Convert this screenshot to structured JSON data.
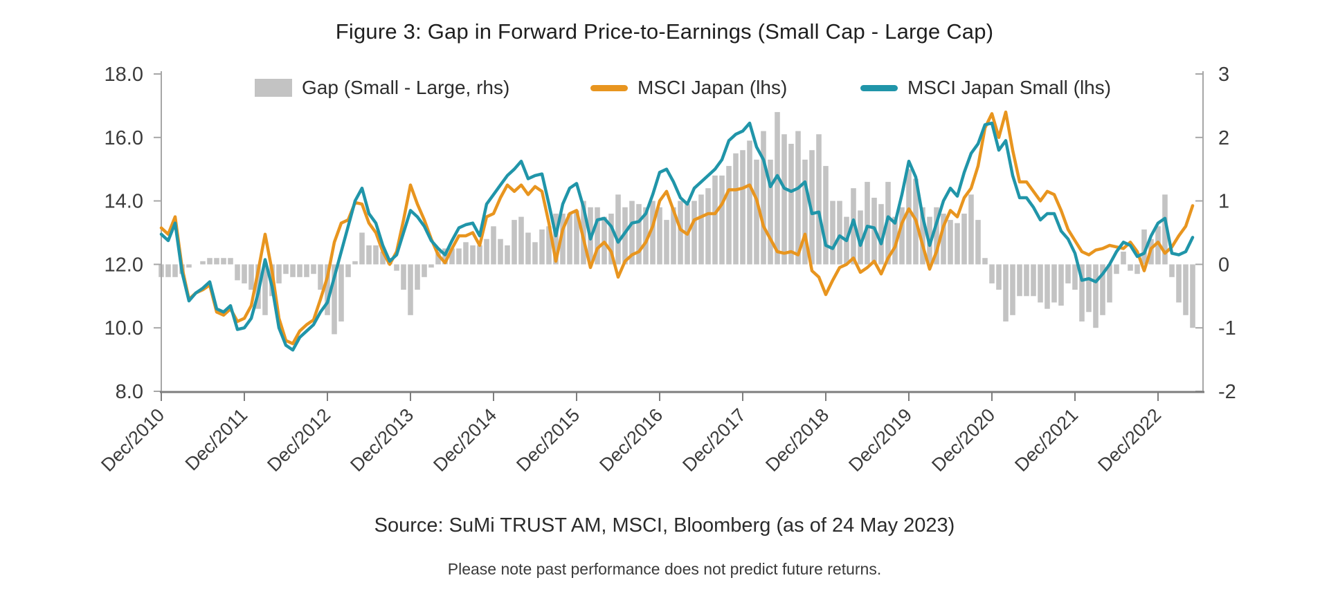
{
  "figure": {
    "title": "Figure 3: Gap in Forward Price-to-Earnings (Small Cap - Large Cap)",
    "source": "Source: SuMi TRUST AM, MSCI, Bloomberg (as of 24 May 2023)",
    "note": "Please note past performance does not predict future returns."
  },
  "legend": [
    {
      "label": "Gap (Small - Large, rhs)",
      "swatch": "bar",
      "color": "#C3C3C3"
    },
    {
      "label": "MSCI Japan (lhs)",
      "swatch": "line",
      "color": "#E8951F"
    },
    {
      "label": "MSCI Japan Small (lhs)",
      "swatch": "line",
      "color": "#2095A9"
    }
  ],
  "chart_data": {
    "type": "combo (bar + line)",
    "frequency": "monthly",
    "x_start": "Dec/2010",
    "x_end": "May/2023",
    "x_tick_labels": [
      "Dec/2010",
      "Dec/2011",
      "Dec/2012",
      "Dec/2013",
      "Dec/2014",
      "Dec/2015",
      "Dec/2016",
      "Dec/2017",
      "Dec/2018",
      "Dec/2019",
      "Dec/2020",
      "Dec/2021",
      "Dec/2022"
    ],
    "left_axis": {
      "min": 8,
      "max": 18,
      "tick_labels": [
        "18.0",
        "16.0",
        "14.0",
        "12.0",
        "10.0",
        "8.0"
      ],
      "tick_values": [
        18,
        16,
        14,
        12,
        10,
        8
      ]
    },
    "right_axis": {
      "min": -2,
      "max": 3,
      "tick_labels": [
        "3",
        "2",
        "1",
        "0",
        "-1",
        "-2"
      ],
      "tick_values": [
        3,
        2,
        1,
        0,
        -1,
        -2
      ]
    },
    "grid": "off",
    "legend_position": "top-inside",
    "series": [
      {
        "name": "Gap (Small - Large, rhs)",
        "type": "bar",
        "axis": "right",
        "color": "#C3C3C3",
        "values": [
          -0.2,
          -0.2,
          -0.2,
          -0.15,
          -0.05,
          0.0,
          0.05,
          0.1,
          0.1,
          0.1,
          0.1,
          -0.25,
          -0.3,
          -0.4,
          -0.7,
          -0.8,
          -0.5,
          -0.3,
          -0.15,
          -0.2,
          -0.2,
          -0.2,
          -0.15,
          -0.4,
          -0.8,
          -1.1,
          -0.9,
          -0.2,
          0.05,
          0.5,
          0.3,
          0.3,
          0.2,
          0.1,
          -0.1,
          -0.4,
          -0.8,
          -0.4,
          -0.2,
          -0.05,
          0.2,
          0.25,
          0.25,
          0.25,
          0.35,
          0.3,
          0.3,
          0.4,
          0.6,
          0.4,
          0.3,
          0.7,
          0.75,
          0.5,
          0.35,
          0.55,
          0.6,
          0.8,
          0.8,
          0.8,
          0.85,
          1.0,
          0.9,
          0.9,
          0.75,
          0.8,
          1.1,
          0.9,
          1.0,
          0.95,
          0.9,
          1.0,
          0.9,
          0.7,
          0.9,
          1.0,
          0.95,
          1.0,
          1.1,
          1.2,
          1.4,
          1.4,
          1.55,
          1.75,
          1.8,
          1.95,
          1.65,
          2.1,
          1.65,
          2.4,
          2.05,
          1.9,
          2.1,
          1.65,
          1.8,
          2.05,
          1.55,
          1.0,
          1.0,
          0.75,
          1.2,
          0.85,
          1.3,
          1.05,
          0.95,
          1.3,
          0.75,
          0.9,
          1.5,
          1.35,
          0.9,
          0.75,
          0.9,
          0.8,
          0.7,
          0.65,
          0.8,
          1.1,
          0.7,
          0.1,
          -0.3,
          -0.4,
          -0.9,
          -0.8,
          -0.5,
          -0.5,
          -0.5,
          -0.6,
          -0.7,
          -0.6,
          -0.65,
          -0.3,
          -0.4,
          -0.9,
          -0.75,
          -1.0,
          -0.8,
          -0.6,
          -0.15,
          0.2,
          -0.1,
          -0.15,
          0.55,
          0.4,
          0.6,
          1.1,
          -0.2,
          -0.6,
          -0.8,
          -1.0
        ]
      },
      {
        "name": "MSCI Japan (lhs)",
        "type": "line",
        "axis": "left",
        "color": "#E8951F",
        "values": [
          13.15,
          12.95,
          13.5,
          11.9,
          10.9,
          11.1,
          11.2,
          11.35,
          10.5,
          10.4,
          10.6,
          10.2,
          10.3,
          10.7,
          11.8,
          12.95,
          11.8,
          10.3,
          9.6,
          9.5,
          9.9,
          10.1,
          10.25,
          10.9,
          11.6,
          12.7,
          13.3,
          13.4,
          13.95,
          13.9,
          13.3,
          13.0,
          12.4,
          12.0,
          12.4,
          13.4,
          14.5,
          13.9,
          13.4,
          12.8,
          12.3,
          12.05,
          12.5,
          12.9,
          12.9,
          13.0,
          12.6,
          13.5,
          13.6,
          14.1,
          14.5,
          14.3,
          14.5,
          14.2,
          14.45,
          14.3,
          13.3,
          12.1,
          13.1,
          13.6,
          13.7,
          12.8,
          11.9,
          12.5,
          12.7,
          12.4,
          11.6,
          12.1,
          12.3,
          12.4,
          12.7,
          13.2,
          14.0,
          14.3,
          13.7,
          13.1,
          12.95,
          13.4,
          13.5,
          13.6,
          13.6,
          13.9,
          14.35,
          14.35,
          14.4,
          14.5,
          14.05,
          13.2,
          12.8,
          12.4,
          12.35,
          12.4,
          12.3,
          12.95,
          11.8,
          11.6,
          11.05,
          11.5,
          11.9,
          12.0,
          12.2,
          11.75,
          11.9,
          12.1,
          11.7,
          12.2,
          12.55,
          13.3,
          13.75,
          13.4,
          12.6,
          11.85,
          12.4,
          13.2,
          13.7,
          13.5,
          14.1,
          14.4,
          15.1,
          16.3,
          16.75,
          16.0,
          16.8,
          15.6,
          14.6,
          14.6,
          14.3,
          14.0,
          14.3,
          14.2,
          13.7,
          13.1,
          12.75,
          12.4,
          12.3,
          12.45,
          12.5,
          12.6,
          12.55,
          12.5,
          12.7,
          12.4,
          11.8,
          12.5,
          12.7,
          12.35,
          12.55,
          12.9,
          13.2,
          13.85
        ]
      },
      {
        "name": "MSCI Japan Small (lhs)",
        "type": "line",
        "axis": "left",
        "color": "#2095A9",
        "values": [
          12.95,
          12.75,
          13.3,
          11.75,
          10.85,
          11.1,
          11.25,
          11.45,
          10.6,
          10.5,
          10.7,
          9.95,
          10.0,
          10.3,
          11.1,
          12.15,
          11.3,
          10.0,
          9.45,
          9.3,
          9.7,
          9.9,
          10.1,
          10.5,
          10.8,
          11.6,
          12.4,
          13.2,
          14.0,
          14.4,
          13.6,
          13.3,
          12.6,
          12.1,
          12.3,
          13.0,
          13.7,
          13.5,
          13.2,
          12.75,
          12.5,
          12.3,
          12.75,
          13.15,
          13.25,
          13.3,
          12.9,
          13.9,
          14.2,
          14.5,
          14.8,
          15.0,
          15.25,
          14.7,
          14.8,
          14.85,
          13.9,
          12.9,
          13.9,
          14.4,
          14.55,
          13.8,
          12.8,
          13.4,
          13.45,
          13.2,
          12.7,
          13.0,
          13.3,
          13.35,
          13.6,
          14.2,
          14.9,
          15.0,
          14.6,
          14.1,
          13.9,
          14.4,
          14.6,
          14.8,
          15.0,
          15.3,
          15.9,
          16.1,
          16.2,
          16.45,
          15.7,
          15.3,
          14.45,
          14.8,
          14.4,
          14.3,
          14.4,
          14.6,
          13.6,
          13.65,
          12.6,
          12.5,
          12.9,
          12.75,
          13.4,
          12.6,
          13.2,
          13.15,
          12.65,
          13.5,
          13.3,
          14.2,
          15.25,
          14.75,
          13.5,
          12.6,
          13.3,
          14.0,
          14.4,
          14.15,
          14.9,
          15.5,
          15.8,
          16.4,
          16.45,
          15.6,
          15.9,
          14.8,
          14.1,
          14.1,
          13.8,
          13.4,
          13.6,
          13.6,
          13.05,
          12.8,
          12.35,
          11.5,
          11.55,
          11.45,
          11.7,
          12.0,
          12.4,
          12.7,
          12.6,
          12.25,
          12.35,
          12.9,
          13.3,
          13.45,
          12.35,
          12.3,
          12.4,
          12.85
        ]
      }
    ]
  }
}
